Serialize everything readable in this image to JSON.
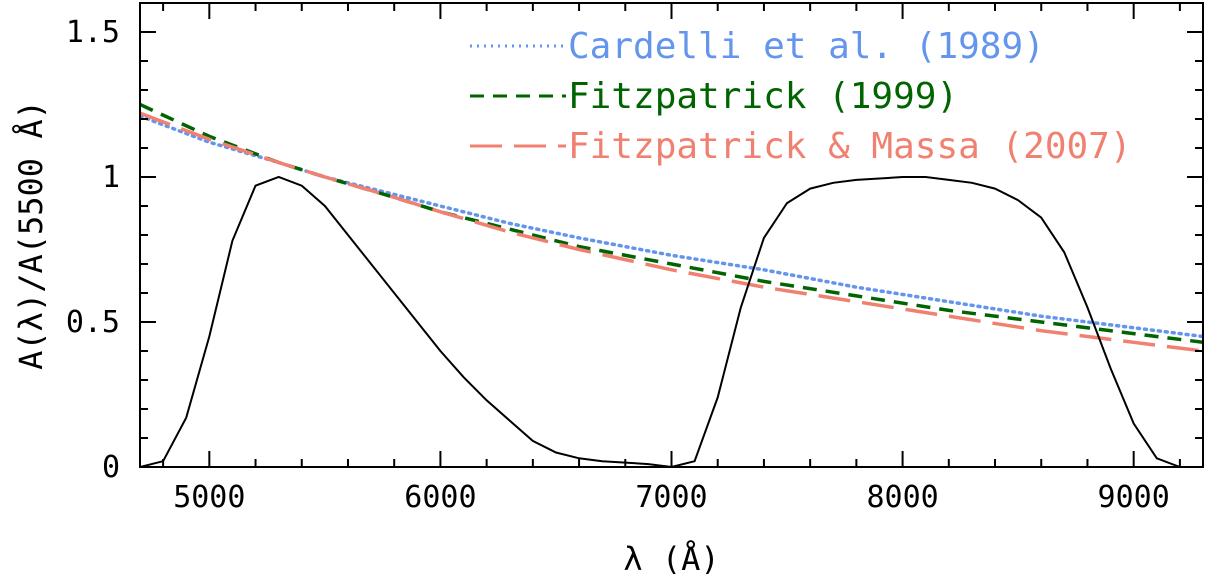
{
  "chart_data": {
    "type": "line",
    "xlabel": "λ (Å)",
    "ylabel": "A(λ)/A(5500 Å)",
    "xlim": [
      4700,
      9300
    ],
    "ylim": [
      0,
      1.6
    ],
    "x_ticks": [
      5000,
      6000,
      7000,
      8000,
      9000
    ],
    "y_ticks": [
      0,
      0.5,
      1,
      1.5
    ],
    "x_tick_labels": [
      "5000",
      "6000",
      "7000",
      "8000",
      "9000"
    ],
    "y_tick_labels": [
      "0",
      "0.5",
      "1",
      "1.5"
    ],
    "legend_position": "top-right",
    "series": [
      {
        "name": "Cardelli et al. (1989)",
        "color": "#6495ed",
        "style": "dotted",
        "x": [
          4700,
          5000,
          5300,
          5500,
          5800,
          6000,
          6300,
          6600,
          7000,
          7400,
          7800,
          8200,
          8600,
          9000,
          9300
        ],
        "y": [
          1.21,
          1.12,
          1.05,
          1.0,
          0.94,
          0.9,
          0.84,
          0.79,
          0.73,
          0.68,
          0.62,
          0.57,
          0.52,
          0.48,
          0.45
        ]
      },
      {
        "name": "Fitzpatrick (1999)",
        "color": "#006400",
        "style": "short-dash",
        "x": [
          4700,
          5000,
          5300,
          5500,
          5800,
          6000,
          6300,
          6600,
          7000,
          7400,
          7800,
          8200,
          8600,
          9000,
          9300
        ],
        "y": [
          1.25,
          1.14,
          1.05,
          1.0,
          0.93,
          0.88,
          0.82,
          0.76,
          0.7,
          0.64,
          0.59,
          0.54,
          0.5,
          0.46,
          0.43
        ]
      },
      {
        "name": "Fitzpatrick & Massa (2007)",
        "color": "#f08070",
        "style": "long-dash",
        "x": [
          4700,
          5000,
          5300,
          5500,
          5800,
          6000,
          6300,
          6600,
          7000,
          7400,
          7800,
          8200,
          8600,
          9000,
          9300
        ],
        "y": [
          1.22,
          1.13,
          1.05,
          1.0,
          0.93,
          0.88,
          0.81,
          0.75,
          0.68,
          0.62,
          0.57,
          0.52,
          0.47,
          0.43,
          0.4
        ]
      },
      {
        "color": "#000000",
        "style": "solid",
        "x": [
          4700,
          4800,
          4900,
          5000,
          5100,
          5200,
          5300,
          5400,
          5500,
          5600,
          5700,
          5800,
          5900,
          6000,
          6100,
          6200,
          6300,
          6400,
          6500,
          6600,
          6700,
          6800,
          6900,
          7000
        ],
        "y": [
          0,
          0.02,
          0.17,
          0.45,
          0.78,
          0.97,
          1.0,
          0.97,
          0.9,
          0.8,
          0.7,
          0.6,
          0.5,
          0.4,
          0.31,
          0.23,
          0.16,
          0.09,
          0.05,
          0.03,
          0.02,
          0.015,
          0.01,
          0.0
        ]
      },
      {
        "color": "#000000",
        "style": "solid",
        "x": [
          7000,
          7100,
          7200,
          7300,
          7400,
          7500,
          7600,
          7700,
          7800,
          7900,
          8000,
          8100,
          8200,
          8300,
          8400,
          8500,
          8600,
          8700,
          8800,
          8900,
          9000,
          9100,
          9200
        ],
        "y": [
          0,
          0.02,
          0.24,
          0.55,
          0.79,
          0.91,
          0.96,
          0.98,
          0.99,
          0.995,
          1.0,
          1.0,
          0.99,
          0.98,
          0.96,
          0.92,
          0.86,
          0.74,
          0.55,
          0.34,
          0.15,
          0.03,
          0.0
        ]
      }
    ]
  }
}
